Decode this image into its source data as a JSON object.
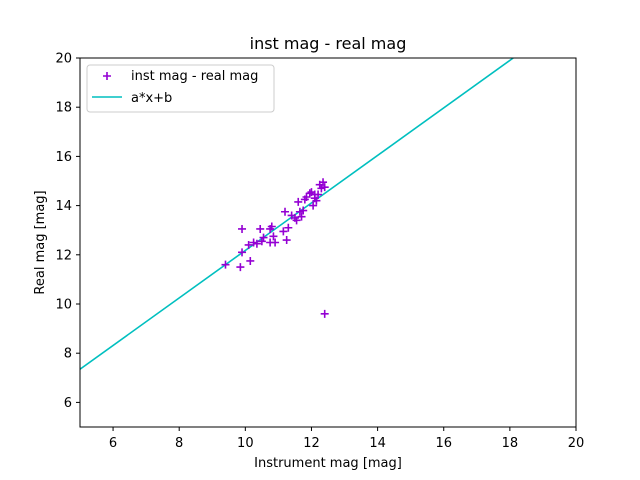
{
  "chart_data": {
    "type": "scatter",
    "title": "inst mag - real mag",
    "xlabel": "Instrument mag [mag]",
    "ylabel": "Real mag [mag]",
    "xlim": [
      5,
      20
    ],
    "ylim": [
      5,
      20
    ],
    "xticks": [
      6,
      8,
      10,
      12,
      14,
      16,
      18,
      20
    ],
    "yticks": [
      6,
      8,
      10,
      12,
      14,
      16,
      18,
      20
    ],
    "grid": false,
    "legend_position": "upper-left",
    "series": [
      {
        "name": "inst mag - real mag",
        "kind": "scatter",
        "marker": "+",
        "color": "#9400D3",
        "x": [
          9.4,
          9.85,
          9.9,
          9.9,
          10.1,
          10.15,
          10.25,
          10.35,
          10.45,
          10.5,
          10.55,
          10.75,
          10.75,
          10.8,
          10.85,
          10.9,
          11.15,
          11.2,
          11.25,
          11.3,
          11.4,
          11.5,
          11.55,
          11.6,
          11.65,
          11.7,
          11.75,
          11.8,
          11.85,
          11.95,
          12.0,
          12.05,
          12.1,
          12.1,
          12.15,
          12.2,
          12.25,
          12.3,
          12.35,
          12.4,
          12.4
        ],
        "y": [
          11.6,
          11.5,
          12.1,
          13.05,
          12.4,
          11.75,
          12.5,
          12.45,
          13.05,
          12.55,
          12.7,
          12.5,
          13.05,
          13.15,
          12.75,
          12.5,
          12.95,
          13.75,
          12.6,
          13.1,
          13.6,
          13.5,
          13.4,
          14.15,
          13.75,
          13.55,
          13.8,
          14.25,
          14.35,
          14.5,
          14.55,
          14.0,
          14.3,
          14.45,
          14.2,
          14.45,
          14.85,
          14.7,
          14.95,
          14.75,
          9.6
        ]
      },
      {
        "name": "a*x+b",
        "kind": "line",
        "color": "#00BFBF",
        "x": [
          5,
          18.1
        ],
        "y": [
          7.35,
          20.0
        ]
      }
    ]
  }
}
